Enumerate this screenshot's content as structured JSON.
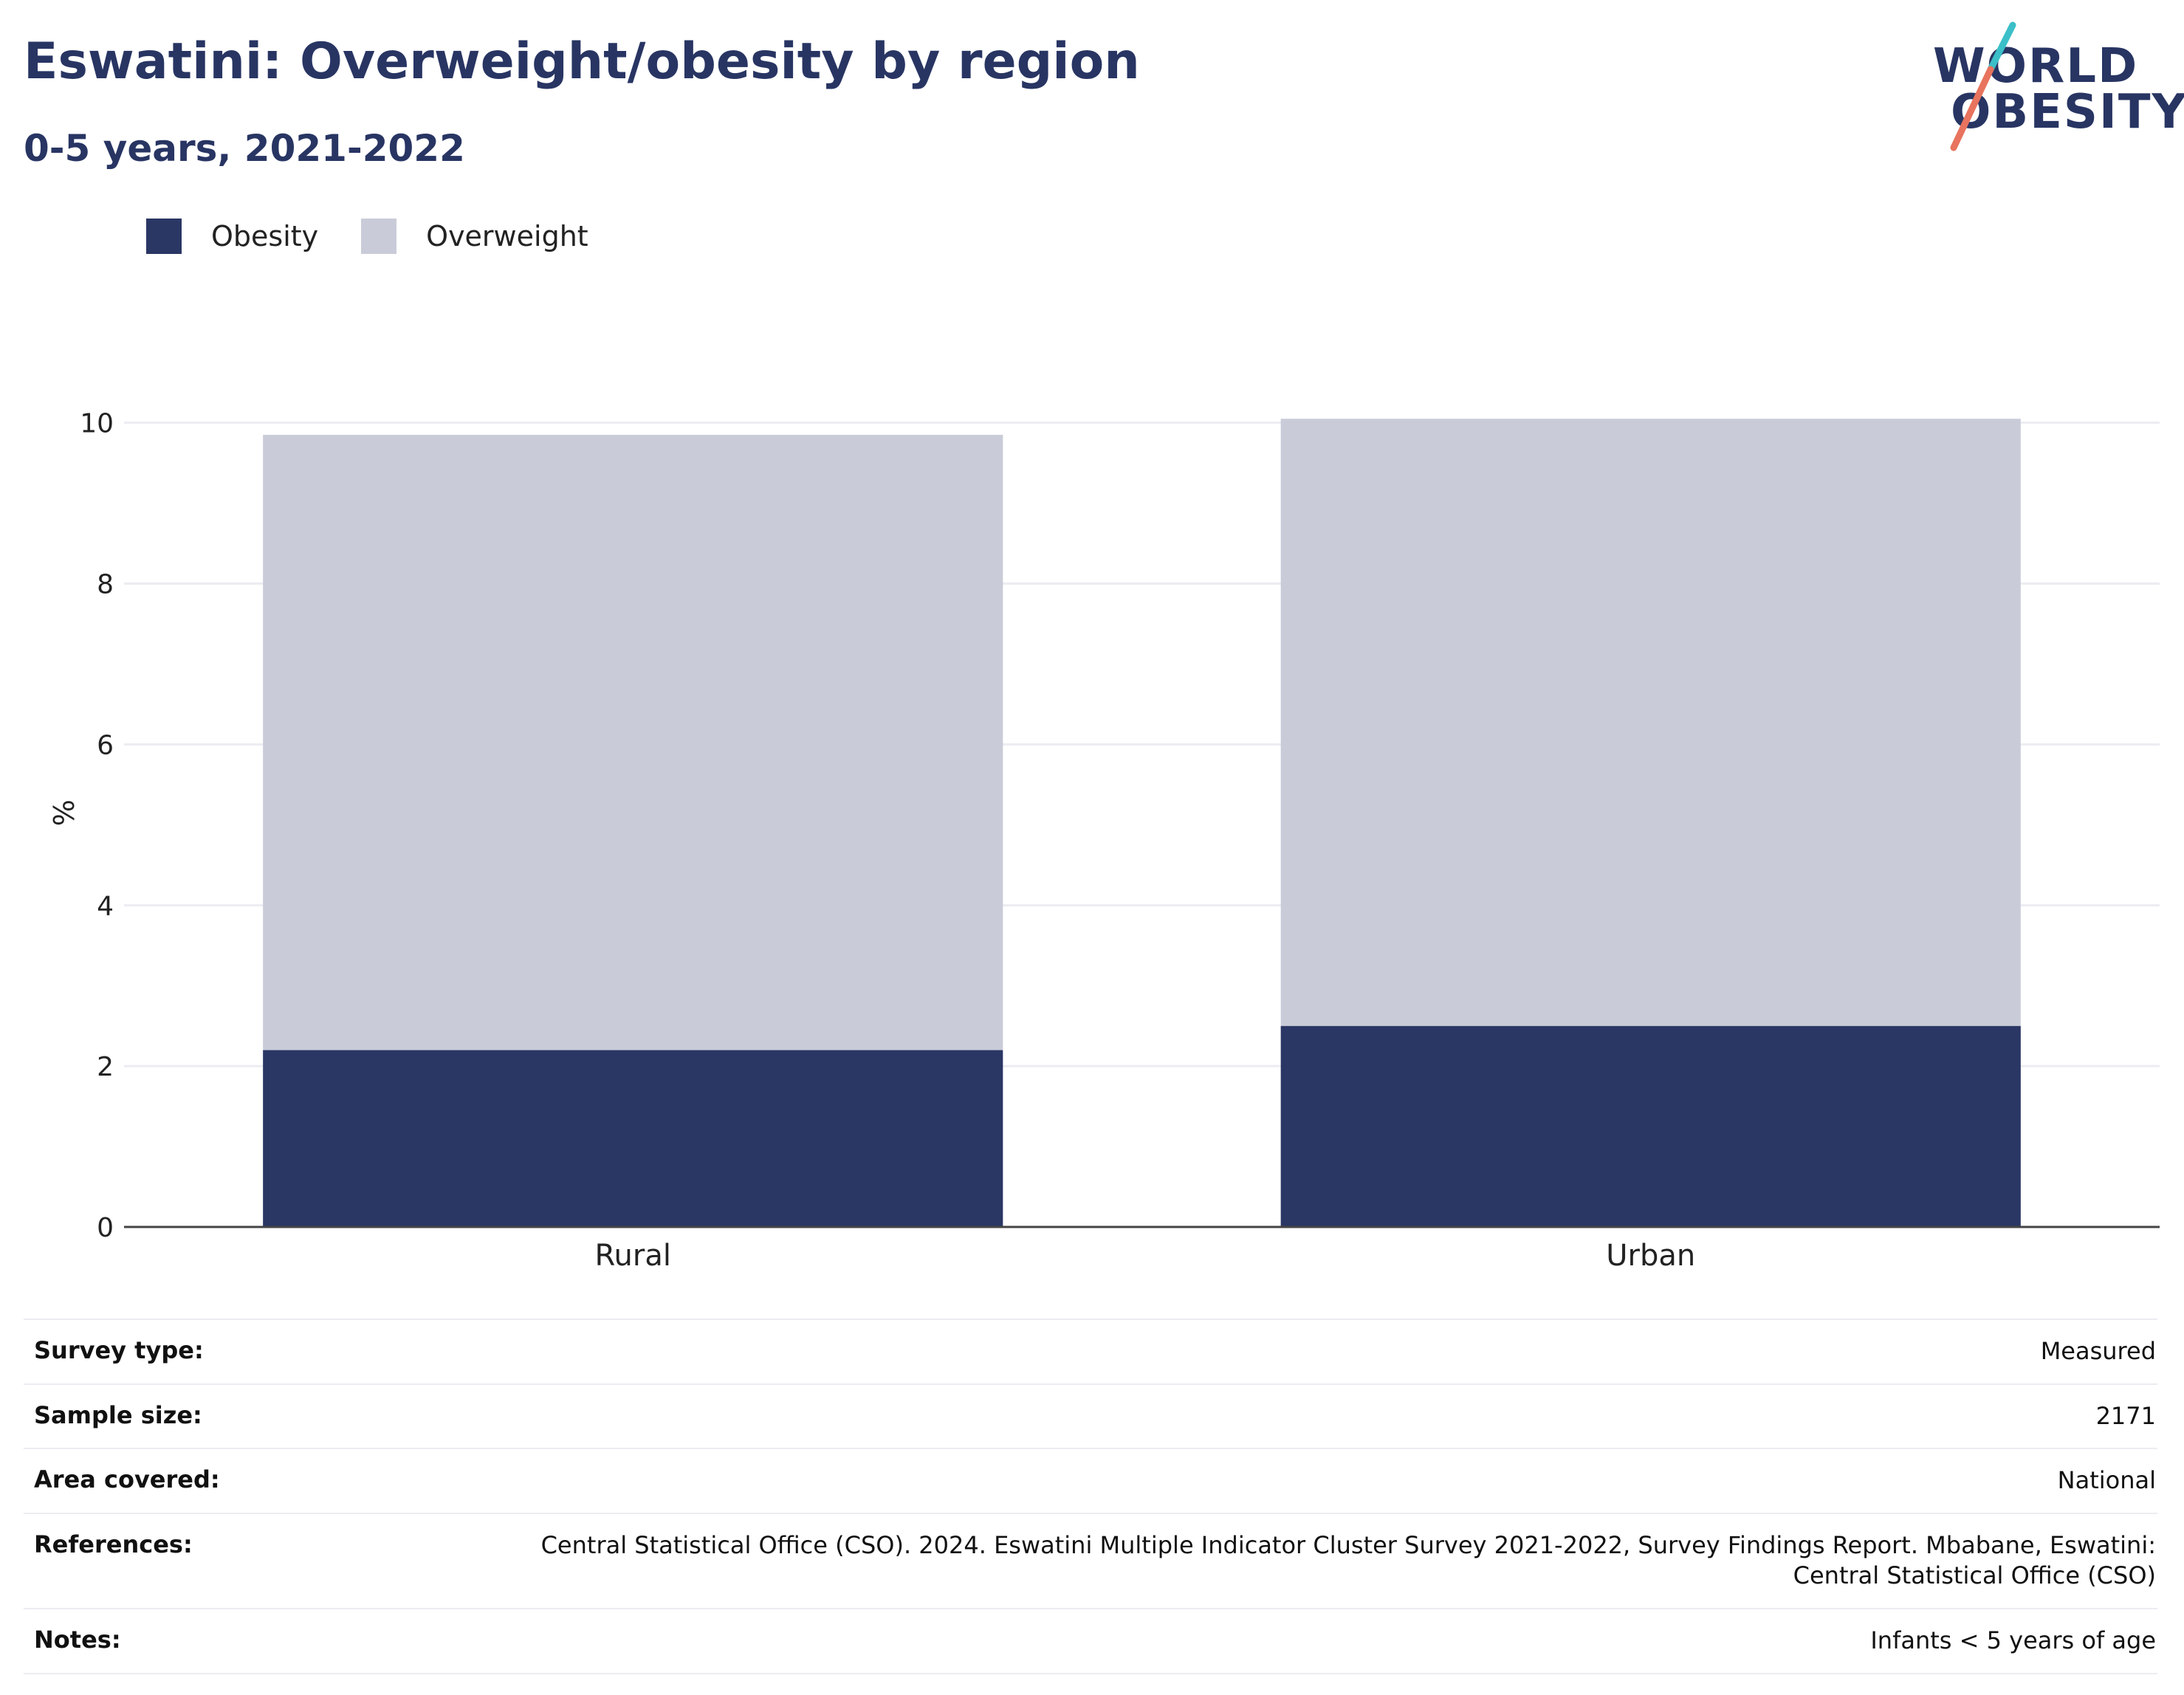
{
  "header": {
    "title": "Eswatini: Overweight/obesity by region",
    "subtitle": "0-5 years, 2021-2022"
  },
  "logo": {
    "line1": "WORLD",
    "line2": "OBESITY",
    "colors": {
      "text": "#283563",
      "slash_top": "#3bbfc8",
      "slash_bottom": "#e8735e"
    }
  },
  "colors": {
    "obesity": "#2a3664",
    "overweight": "#c9ccd8",
    "grid": "#ececf2",
    "axis": "#444444"
  },
  "chart_data": {
    "type": "bar",
    "stacked": true,
    "categories": [
      "Rural",
      "Urban"
    ],
    "series": [
      {
        "name": "Obesity",
        "values": [
          2.2,
          2.5
        ],
        "color": "#2a3664"
      },
      {
        "name": "Overweight",
        "values": [
          7.65,
          7.55
        ],
        "color": "#c9ccd8"
      }
    ],
    "xlabel": "",
    "ylabel": "%",
    "ylim": [
      0,
      10.3
    ],
    "yticks": [
      0,
      2,
      4,
      6,
      8,
      10
    ],
    "grid": true,
    "legend_position": "top-left"
  },
  "meta": [
    {
      "key": "Survey type:",
      "value": "Measured"
    },
    {
      "key": "Sample size:",
      "value": "2171"
    },
    {
      "key": "Area covered:",
      "value": "National"
    },
    {
      "key": "References:",
      "value": "Central Statistical Office (CSO). 2024. Eswatini Multiple Indicator Cluster Survey 2021-2022, Survey Findings Report. Mbabane, Eswatini: Central Statistical Office (CSO)"
    },
    {
      "key": "Notes:",
      "value": "Infants < 5 years of age"
    }
  ]
}
